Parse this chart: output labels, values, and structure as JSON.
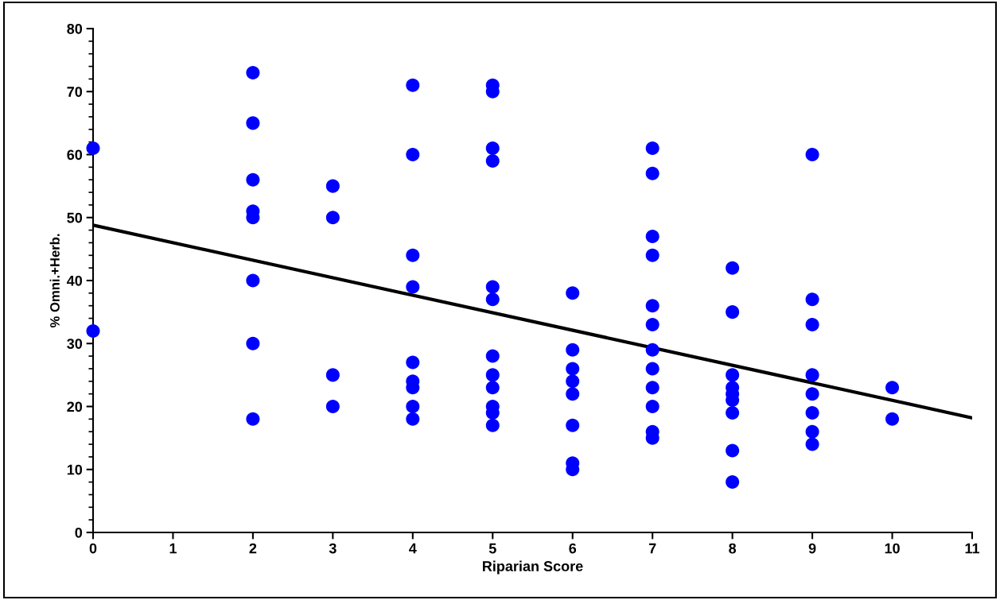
{
  "chart_data": {
    "type": "scatter",
    "xlabel": "Riparian Score",
    "ylabel": "% Omni.+Herb.",
    "xlim": [
      0,
      11
    ],
    "ylim": [
      0,
      80
    ],
    "xticks": [
      0,
      1,
      2,
      3,
      4,
      5,
      6,
      7,
      8,
      9,
      10,
      11
    ],
    "yticks": [
      0,
      10,
      20,
      30,
      40,
      50,
      60,
      70,
      80
    ],
    "grid": false,
    "legend": false,
    "series": [
      {
        "marker": "circle",
        "color": "#0000ff",
        "x": [
          0,
          0,
          2,
          2,
          2,
          2,
          2,
          2,
          2,
          2,
          3,
          3,
          3,
          3,
          4,
          4,
          4,
          4,
          4,
          4,
          4,
          4,
          4,
          5,
          5,
          5,
          5,
          5,
          5,
          5,
          5,
          5,
          5,
          5,
          5,
          6,
          6,
          6,
          6,
          6,
          6,
          6,
          6,
          7,
          7,
          7,
          7,
          7,
          7,
          7,
          7,
          7,
          7,
          7,
          7,
          8,
          8,
          8,
          8,
          8,
          8,
          8,
          8,
          8,
          9,
          9,
          9,
          9,
          9,
          9,
          9,
          9,
          10,
          10
        ],
        "values": [
          61,
          32,
          73,
          65,
          56,
          51,
          50,
          40,
          30,
          18,
          55,
          50,
          25,
          20,
          71,
          60,
          44,
          39,
          27,
          24,
          23,
          20,
          18,
          71,
          70,
          61,
          59,
          39,
          37,
          28,
          25,
          23,
          20,
          19,
          17,
          38,
          29,
          26,
          24,
          22,
          17,
          11,
          10,
          61,
          57,
          47,
          44,
          36,
          33,
          29,
          26,
          23,
          20,
          16,
          15,
          42,
          35,
          25,
          23,
          22,
          21,
          19,
          13,
          8,
          60,
          37,
          33,
          25,
          22,
          19,
          16,
          14,
          23,
          18
        ]
      },
      {
        "type": "line",
        "color": "#000000",
        "x": [
          0,
          11
        ],
        "values": [
          48.8,
          18.2
        ],
        "line_style": "solid"
      }
    ]
  }
}
